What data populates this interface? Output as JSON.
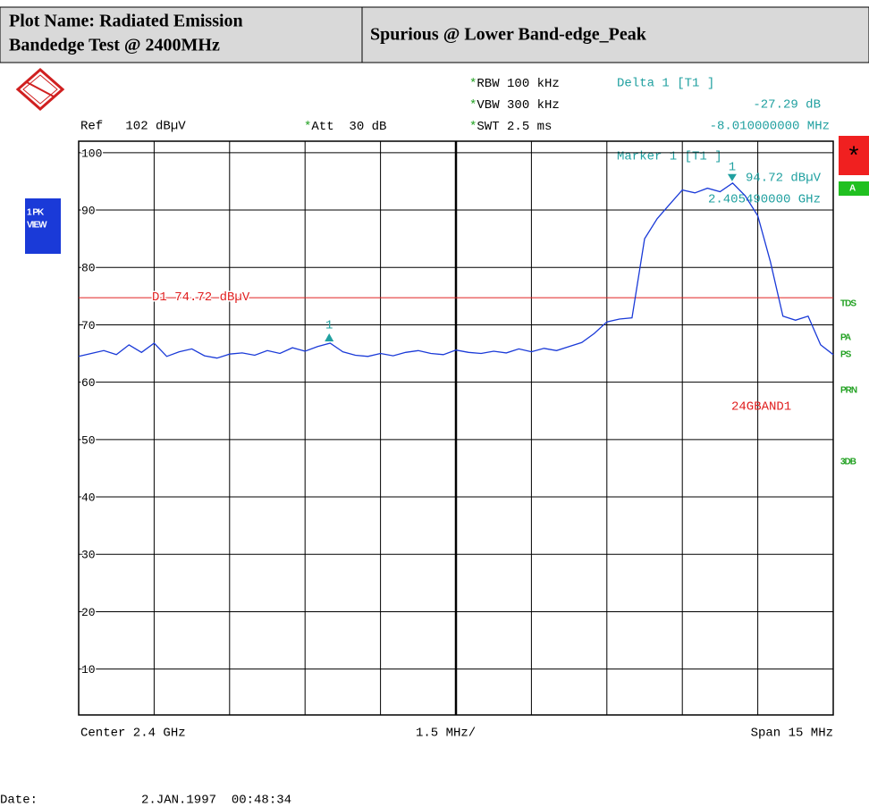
{
  "header": {
    "left": [
      "Plot Name: Radiated Emission",
      "Bandedge Test @ 2400MHz"
    ],
    "right": "Spurious   @ Lower Band-edge_Peak"
  },
  "settings": [
    {
      "star": "*",
      "text": "RBW 100 kHz"
    },
    {
      "star": "*",
      "text": "VBW 300 kHz"
    },
    {
      "star": "*",
      "text": "SWT 2.5 ms"
    }
  ],
  "ref": "Ref   102 dBµV",
  "att": {
    "star": "*",
    "text": "Att  30 dB"
  },
  "delta": {
    "title": "Delta 1 [T1 ]",
    "level": "-27.29 dB",
    "freq": "-8.010000000 MHz"
  },
  "marker_info": {
    "title": "Marker 1 [T1 ]",
    "level": "94.72 dBµV",
    "freq": "2.405490000 GHz"
  },
  "side_left": [
    "1 PK",
    "VIEW"
  ],
  "side_right": {
    "star": "*",
    "a": "A",
    "flags": [
      "TDS",
      "PA",
      "PS",
      "PRN",
      "3DB"
    ]
  },
  "limit_name": "24GBAND1",
  "footer": {
    "center": "Center 2.4 GHz",
    "div": "1.5 MHz/",
    "span": "Span 15 MHz",
    "date_label": "Date:",
    "date": "2.JAN.1997  00:48:34"
  },
  "chart_data": {
    "type": "line",
    "ylim": [
      2,
      102
    ],
    "yticks": [
      100,
      90,
      80,
      70,
      60,
      50,
      40,
      30,
      20,
      10
    ],
    "xlim": [
      2392.5,
      2407.5
    ],
    "x": [
      2392.5,
      2392.75,
      2393,
      2393.25,
      2393.5,
      2393.75,
      2394,
      2394.25,
      2394.5,
      2394.75,
      2395,
      2395.25,
      2395.5,
      2395.75,
      2396,
      2396.25,
      2396.5,
      2396.75,
      2397,
      2397.25,
      2397.5,
      2397.75,
      2398,
      2398.25,
      2398.5,
      2398.75,
      2399,
      2399.25,
      2399.5,
      2399.75,
      2400,
      2400.25,
      2400.5,
      2400.75,
      2401,
      2401.25,
      2401.5,
      2401.75,
      2402,
      2402.25,
      2402.5,
      2402.75,
      2403,
      2403.25,
      2403.5,
      2403.75,
      2404,
      2404.25,
      2404.5,
      2404.75,
      2405,
      2405.25,
      2405.5,
      2405.75,
      2406,
      2406.25,
      2406.5,
      2406.75,
      2407,
      2407.25,
      2407.5
    ],
    "values": [
      64.5,
      65,
      65.5,
      64.8,
      66.5,
      65.2,
      66.8,
      64.5,
      65.3,
      65.8,
      64.6,
      64.2,
      64.9,
      65.1,
      64.7,
      65.5,
      65.0,
      66.0,
      65.4,
      66.2,
      66.8,
      65.3,
      64.7,
      64.5,
      65.0,
      64.6,
      65.2,
      65.5,
      65.0,
      64.8,
      65.6,
      65.2,
      65.0,
      65.4,
      65.1,
      65.8,
      65.3,
      65.9,
      65.5,
      66.2,
      66.9,
      68.5,
      70.5,
      71.0,
      71.2,
      85.0,
      88.5,
      91.0,
      93.5,
      93.0,
      93.8,
      93.2,
      94.7,
      92.5,
      89.0,
      81.0,
      71.5,
      70.8,
      71.5,
      66.5,
      64.8
    ],
    "color": "#1a3ad8",
    "display_line": {
      "label": "D1 74.72 dBµV",
      "value": 74.72,
      "color": "#e02020"
    },
    "markers": [
      {
        "label": "1",
        "x": 2405.49,
        "y": 94.72
      },
      {
        "label": "1",
        "x": 2397.48,
        "y": 67.43
      }
    ],
    "marker_color": "#20a0a0"
  }
}
